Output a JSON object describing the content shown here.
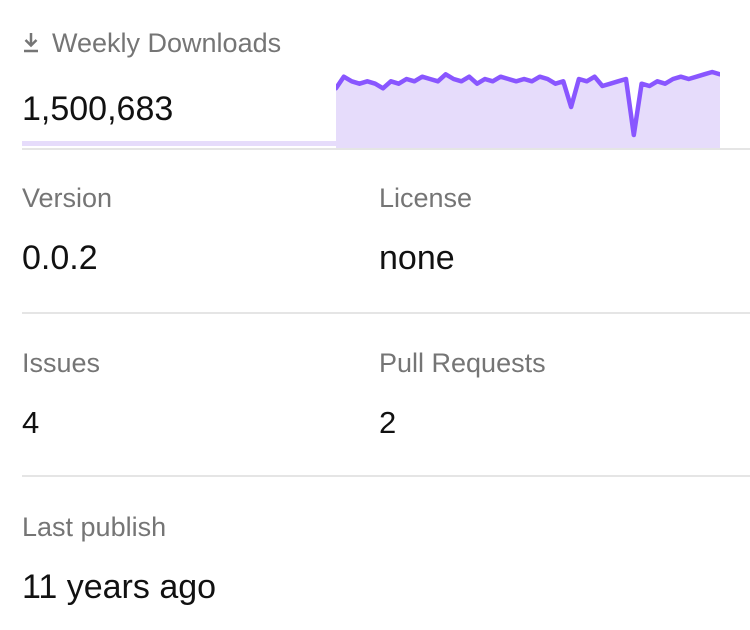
{
  "weekly_downloads": {
    "label": "Weekly Downloads",
    "icon": "download-icon",
    "value": "1,500,683",
    "accent": "#8956ff",
    "fill": "#e6dcfb",
    "chart_data": {
      "type": "area",
      "y_rel": [
        0.93,
        0.98,
        0.96,
        0.95,
        0.96,
        0.95,
        0.93,
        0.96,
        0.95,
        0.97,
        0.96,
        0.98,
        0.97,
        0.96,
        0.99,
        0.97,
        0.96,
        0.98,
        0.95,
        0.97,
        0.96,
        0.98,
        0.97,
        0.96,
        0.97,
        0.96,
        0.98,
        0.97,
        0.95,
        0.96,
        0.85,
        0.97,
        0.96,
        0.98,
        0.94,
        0.95,
        0.96,
        0.97,
        0.73,
        0.95,
        0.94,
        0.96,
        0.95,
        0.97,
        0.98,
        0.97,
        0.98,
        0.99,
        1.0,
        0.99
      ]
    }
  },
  "version": {
    "label": "Version",
    "value": "0.0.2"
  },
  "license": {
    "label": "License",
    "value": "none"
  },
  "issues": {
    "label": "Issues",
    "value": "4"
  },
  "pull_requests": {
    "label": "Pull Requests",
    "value": "2"
  },
  "last_publish": {
    "label": "Last publish",
    "value": "11 years ago"
  }
}
